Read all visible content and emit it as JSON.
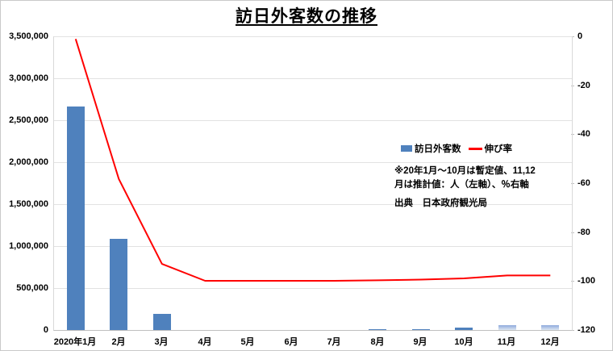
{
  "chart_data": {
    "type": "bar+line combo",
    "title": "訪日外客数の推移",
    "categories": [
      "2020年1月",
      "2月",
      "3月",
      "4月",
      "5月",
      "6月",
      "7月",
      "8月",
      "9月",
      "10月",
      "11月",
      "12月"
    ],
    "series": [
      {
        "name": "訪日外客数",
        "type": "bar",
        "axis": "left",
        "unit": "人",
        "values": [
          2661022,
          1085147,
          193658,
          2917,
          1663,
          2565,
          3800,
          8658,
          13684,
          27386,
          56700,
          58700
        ],
        "estimated_from_index": 10
      },
      {
        "name": "伸び率",
        "type": "line",
        "axis": "right",
        "unit": "%",
        "values": [
          -1.1,
          -58.3,
          -93.0,
          -99.9,
          -99.9,
          -99.9,
          -99.9,
          -99.7,
          -99.4,
          -98.9,
          -97.7,
          -97.7
        ]
      }
    ],
    "left_axis": {
      "min": 0,
      "max": 3500000,
      "step": 500000,
      "tick_labels": [
        "3,500,000",
        "3,000,000",
        "2,500,000",
        "2,000,000",
        "1,500,000",
        "1,000,000",
        "500,000",
        "0"
      ]
    },
    "right_axis": {
      "min": -120,
      "max": 0,
      "step": 20,
      "tick_labels": [
        "0",
        "-20",
        "-40",
        "-60",
        "-80",
        "-100",
        "-120"
      ]
    },
    "grid": true,
    "legend_position": "inside-right",
    "colors": {
      "bar": "#4F81BD",
      "bar_estimated_top": "#8FAADC",
      "bar_estimated_bottom": "#DCE6F2",
      "line": "#FF0000",
      "gridline": "#E2E2E2",
      "axis_line": "#BFBFBF"
    }
  },
  "notes": {
    "lines": [
      "※20年1月～10月は暫定値、11,12",
      "月は推計値：人（左軸）、％右軸"
    ],
    "source": "出典　日本政府観光局"
  }
}
